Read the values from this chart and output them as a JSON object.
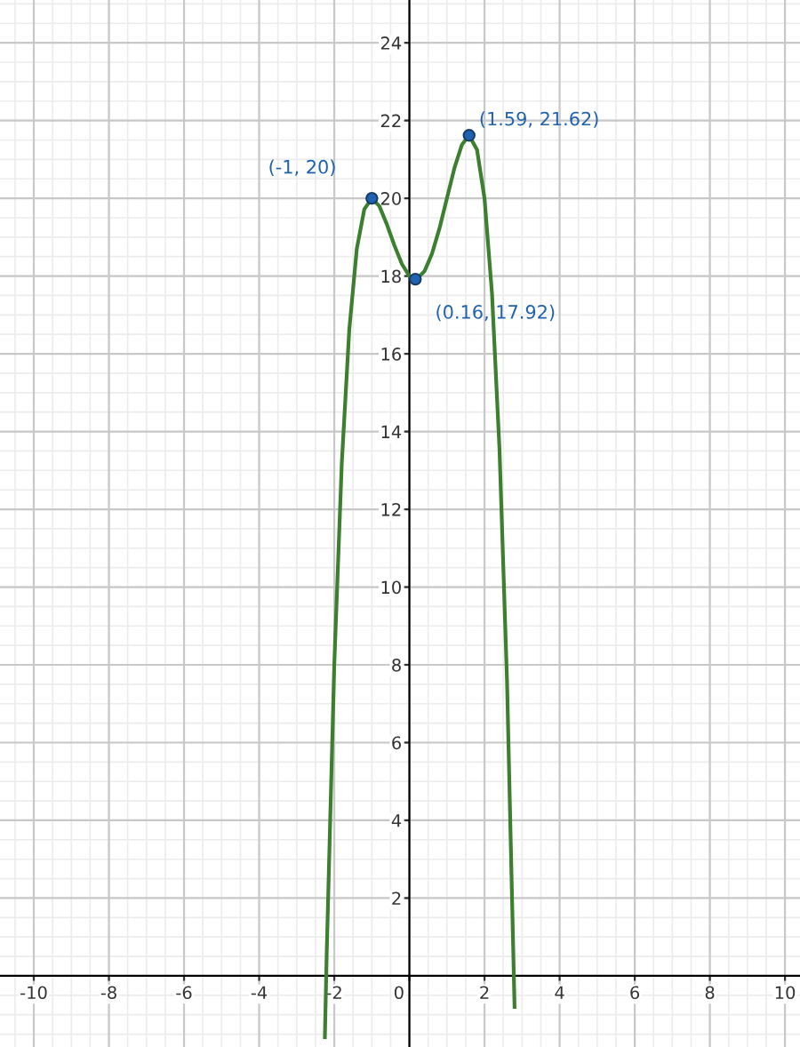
{
  "chart_data": {
    "type": "line",
    "xlim": [
      -10.9,
      10.4
    ],
    "ylim": [
      -1.83,
      25.1
    ],
    "xticks": [
      -10,
      -8,
      -6,
      -4,
      -2,
      0,
      2,
      4,
      6,
      8,
      10
    ],
    "yticks": [
      2,
      4,
      6,
      8,
      10,
      12,
      14,
      16,
      18,
      20,
      22,
      24
    ],
    "grid": true,
    "series": [
      {
        "color": "#3b7f2f",
        "x": [
          -2.25,
          -2.2,
          -2.0,
          -1.8,
          -1.6,
          -1.4,
          -1.2,
          -1.0,
          -0.8,
          -0.6,
          -0.4,
          -0.2,
          0,
          0.16,
          0.2,
          0.4,
          0.6,
          0.8,
          1.0,
          1.2,
          1.4,
          1.59,
          1.8,
          2.0,
          2.2,
          2.4,
          2.6,
          2.8
        ],
        "values": [
          -1.58,
          0.64,
          8,
          13.19,
          16.63,
          18.7,
          19.72,
          20,
          19.8,
          19.33,
          18.79,
          18.31,
          18,
          17.92,
          17.93,
          18.12,
          18.57,
          19.22,
          20,
          20.78,
          21.38,
          21.62,
          21.25,
          20,
          17.54,
          13.52,
          7.56,
          -0.8
        ]
      },
      {
        "type": "scatter",
        "color": "#1e62b0",
        "marker": "circle",
        "x": [
          -1,
          0.16,
          1.59
        ],
        "values": [
          20,
          17.92,
          21.62
        ]
      }
    ],
    "annotations": [
      {
        "text": "(-1, 20)",
        "x": -1,
        "y": 20
      },
      {
        "text": "(0.16, 17.92)",
        "x": 0.16,
        "y": 17.92
      },
      {
        "text": "(1.59, 21.62)",
        "x": 1.59,
        "y": 21.62
      }
    ]
  }
}
